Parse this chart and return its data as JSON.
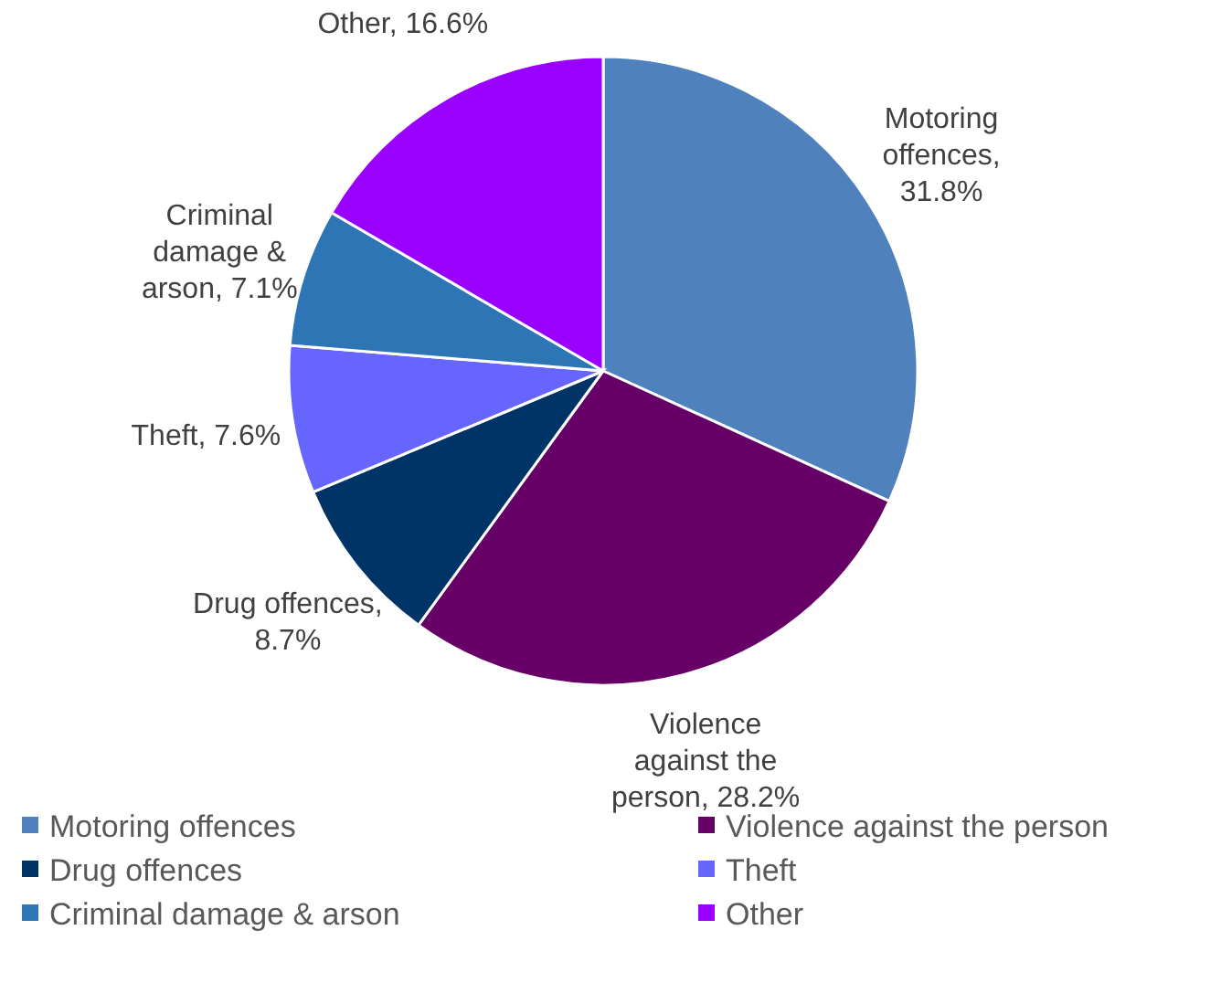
{
  "chart_data": {
    "type": "pie",
    "categories": [
      "Motoring offences",
      "Violence against the person",
      "Drug offences",
      "Theft",
      "Criminal damage & arson",
      "Other"
    ],
    "values": [
      31.8,
      28.2,
      8.7,
      7.6,
      7.1,
      16.6
    ],
    "value_labels": [
      "Motoring offences, 31.8%",
      "Violence against the person, 28.2%",
      "Drug offences, 8.7%",
      "Theft, 7.6%",
      "Criminal damage & arson, 7.1%",
      "Other, 16.6%"
    ],
    "colors": [
      "#4f81bd",
      "#660066",
      "#003366",
      "#6666ff",
      "#2e75b6",
      "#9900ff"
    ],
    "data_labels": true,
    "legend": "bottom"
  }
}
